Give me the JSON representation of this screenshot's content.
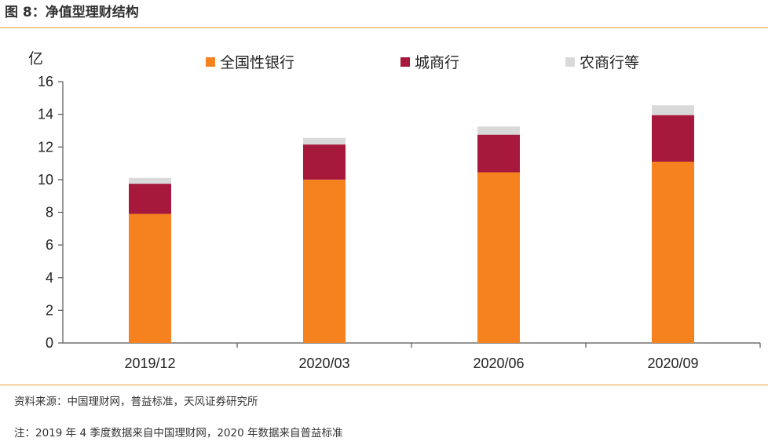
{
  "figure": {
    "title": "图 8：净值型理财结构",
    "source": "资料来源：中国理财网，普益标准，天风证券研究所",
    "note": "注：2019 年 4 季度数据来自中国理财网，2020 年数据来自普益标准"
  },
  "chart_data": {
    "type": "bar",
    "stacked": true,
    "ylabel": "亿",
    "ylim": [
      0,
      16
    ],
    "yticks": [
      0,
      2,
      4,
      6,
      8,
      10,
      12,
      14,
      16
    ],
    "categories": [
      "2019/12",
      "2020/03",
      "2020/06",
      "2020/09"
    ],
    "series": [
      {
        "name": "全国性银行",
        "color": "#f5821f",
        "values": [
          7.9,
          10.0,
          10.45,
          11.1
        ]
      },
      {
        "name": "城商行",
        "color": "#a6193c",
        "values": [
          1.85,
          2.15,
          2.3,
          2.85
        ]
      },
      {
        "name": "农商行等",
        "color": "#d9d9d9",
        "values": [
          0.35,
          0.4,
          0.5,
          0.6
        ]
      }
    ],
    "legend_position": "top",
    "grid": false
  }
}
